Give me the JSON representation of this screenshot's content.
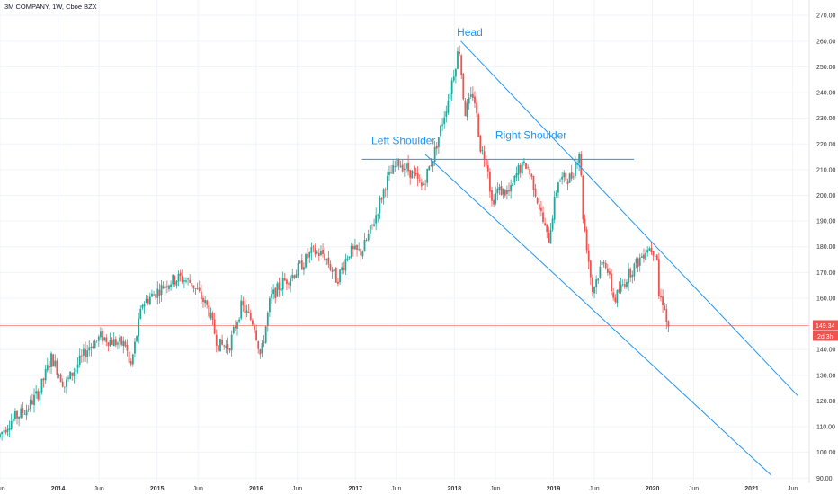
{
  "chart_data": {
    "type": "candlestick",
    "title": "3M COMPANY, 1W, Cboe BZX",
    "xlim": [
      "2013-06-01",
      "2021-08-01"
    ],
    "ylim": [
      88,
      276
    ],
    "y_ticks": [
      90,
      100,
      110,
      120,
      130,
      140,
      150,
      160,
      170,
      180,
      190,
      200,
      210,
      220,
      230,
      240,
      250,
      260,
      270
    ],
    "y_tick_labels": [
      "90.00",
      "100.00",
      "110.00",
      "120.00",
      "130.00",
      "140.00",
      "150.00",
      "160.00",
      "170.00",
      "180.00",
      "190.00",
      "200.00",
      "210.00",
      "220.00",
      "230.00",
      "240.00",
      "250.00",
      "260.00",
      "270.00"
    ],
    "x_ticks": [
      {
        "date": "2013-06-01",
        "label": "Jun",
        "year": false
      },
      {
        "date": "2014-01-01",
        "label": "2014",
        "year": true
      },
      {
        "date": "2014-06-01",
        "label": "Jun",
        "year": false
      },
      {
        "date": "2015-01-01",
        "label": "2015",
        "year": true
      },
      {
        "date": "2015-06-01",
        "label": "Jun",
        "year": false
      },
      {
        "date": "2016-01-01",
        "label": "2016",
        "year": true
      },
      {
        "date": "2016-06-01",
        "label": "Jun",
        "year": false
      },
      {
        "date": "2017-01-01",
        "label": "2017",
        "year": true
      },
      {
        "date": "2017-06-01",
        "label": "Jun",
        "year": false
      },
      {
        "date": "2018-01-01",
        "label": "2018",
        "year": true
      },
      {
        "date": "2018-06-01",
        "label": "Jun",
        "year": false
      },
      {
        "date": "2019-01-01",
        "label": "2019",
        "year": true
      },
      {
        "date": "2019-06-01",
        "label": "Jun",
        "year": false
      },
      {
        "date": "2020-01-01",
        "label": "2020",
        "year": true
      },
      {
        "date": "2020-06-01",
        "label": "Jun",
        "year": false
      },
      {
        "date": "2021-01-01",
        "label": "2021",
        "year": true
      },
      {
        "date": "2021-06-01",
        "label": "Jun",
        "year": false
      }
    ],
    "price_path": [
      [
        "2013-06-01",
        106
      ],
      [
        "2013-07-15",
        112
      ],
      [
        "2013-09-15",
        117
      ],
      [
        "2013-11-01",
        124
      ],
      [
        "2013-12-15",
        137
      ],
      [
        "2014-02-01",
        126
      ],
      [
        "2014-03-15",
        133
      ],
      [
        "2014-05-01",
        141
      ],
      [
        "2014-06-15",
        145
      ],
      [
        "2014-08-01",
        143
      ],
      [
        "2014-09-15",
        142
      ],
      [
        "2014-10-01",
        132
      ],
      [
        "2014-11-15",
        158
      ],
      [
        "2015-01-01",
        162
      ],
      [
        "2015-02-15",
        166
      ],
      [
        "2015-04-01",
        168
      ],
      [
        "2015-05-15",
        166
      ],
      [
        "2015-06-15",
        161
      ],
      [
        "2015-07-15",
        156
      ],
      [
        "2015-08-20",
        142
      ],
      [
        "2015-09-30",
        141
      ],
      [
        "2015-11-15",
        157
      ],
      [
        "2016-01-01",
        150
      ],
      [
        "2016-01-25",
        137
      ],
      [
        "2016-03-01",
        160
      ],
      [
        "2016-04-15",
        166
      ],
      [
        "2016-06-01",
        170
      ],
      [
        "2016-08-01",
        178
      ],
      [
        "2016-09-15",
        177
      ],
      [
        "2016-11-01",
        167
      ],
      [
        "2016-12-15",
        178
      ],
      [
        "2017-02-01",
        178
      ],
      [
        "2017-03-15",
        189
      ],
      [
        "2017-05-01",
        205
      ],
      [
        "2017-06-15",
        213
      ],
      [
        "2017-08-01",
        209
      ],
      [
        "2017-09-10",
        203
      ],
      [
        "2017-10-25",
        216
      ],
      [
        "2017-12-15",
        237
      ],
      [
        "2018-01-26",
        258
      ],
      [
        "2018-02-15",
        232
      ],
      [
        "2018-03-20",
        240
      ],
      [
        "2018-04-15",
        218
      ],
      [
        "2018-05-10",
        213
      ],
      [
        "2018-05-25",
        197
      ],
      [
        "2018-06-15",
        202
      ],
      [
        "2018-08-01",
        201
      ],
      [
        "2018-09-01",
        210
      ],
      [
        "2018-10-01",
        212
      ],
      [
        "2018-10-25",
        205
      ],
      [
        "2018-12-20",
        182
      ],
      [
        "2019-01-25",
        206
      ],
      [
        "2019-03-15",
        207
      ],
      [
        "2019-04-15",
        218
      ],
      [
        "2019-04-26",
        193
      ],
      [
        "2019-06-01",
        163
      ],
      [
        "2019-07-15",
        176
      ],
      [
        "2019-08-20",
        159
      ],
      [
        "2019-10-15",
        170
      ],
      [
        "2019-11-15",
        174
      ],
      [
        "2019-12-20",
        180
      ],
      [
        "2020-01-24",
        178
      ],
      [
        "2020-01-31",
        161
      ],
      [
        "2020-02-21",
        158
      ],
      [
        "2020-03-01",
        149.34
      ]
    ],
    "last_price": 149.34,
    "last_price_label": "149.34",
    "countdown_label": "2d 3h",
    "annotations": [
      {
        "text": "Head",
        "date": "2018-01-10",
        "price": 262
      },
      {
        "text": "Left Shoulder",
        "date": "2017-03-01",
        "price": 220
      },
      {
        "text": "Right Shoulder",
        "date": "2018-06-01",
        "price": 222
      }
    ],
    "neckline": {
      "start": [
        "2017-01-25",
        214
      ],
      "end": [
        "2019-10-25",
        214
      ]
    },
    "channel_upper": {
      "start": [
        "2018-01-25",
        260
      ],
      "end": [
        "2021-06-20",
        122
      ]
    },
    "channel_lower": {
      "start": [
        "2017-09-15",
        216
      ],
      "end": [
        "2021-03-15",
        91
      ]
    },
    "colors": {
      "up": "#26a69a",
      "down": "#ef5350",
      "line": "#2196f3",
      "grid": "#f0f3fa",
      "price_line": "#ef5350",
      "countdown_bg": "#ef5350"
    }
  }
}
